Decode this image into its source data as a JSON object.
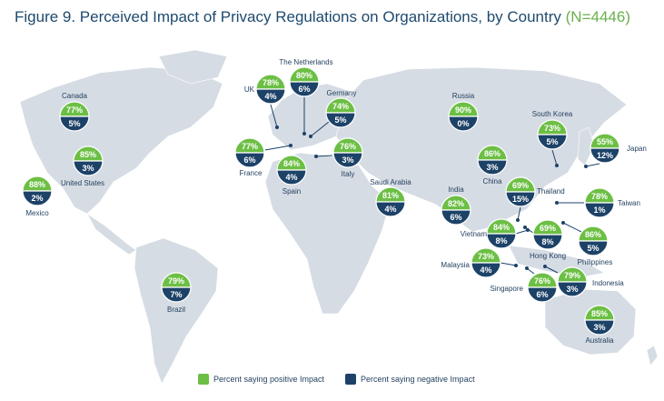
{
  "title": {
    "main": "Figure 9. Perceived Impact of Privacy Regulations on Organizations, by Country",
    "n": "(N=4446)"
  },
  "colors": {
    "positive": "#6cbf44",
    "negative": "#1d4268",
    "land": "#d6dce4",
    "text": "#1e4a6e"
  },
  "legend": {
    "positive": "Percent saying positive Impact",
    "negative": "Percent saying negative Impact"
  },
  "chart_data": {
    "type": "table",
    "series_names": [
      "Percent saying positive Impact",
      "Percent saying negative Impact"
    ],
    "countries": [
      {
        "name": "Canada",
        "positive": "77%",
        "negative": "5%"
      },
      {
        "name": "United States",
        "positive": "85%",
        "negative": "3%"
      },
      {
        "name": "Mexico",
        "positive": "88%",
        "negative": "2%"
      },
      {
        "name": "Brazil",
        "positive": "79%",
        "negative": "7%"
      },
      {
        "name": "UK",
        "positive": "78%",
        "negative": "4%"
      },
      {
        "name": "The Netherlands",
        "positive": "80%",
        "negative": "6%"
      },
      {
        "name": "Germany",
        "positive": "74%",
        "negative": "5%"
      },
      {
        "name": "France",
        "positive": "77%",
        "negative": "6%"
      },
      {
        "name": "Spain",
        "positive": "84%",
        "negative": "4%"
      },
      {
        "name": "Italy",
        "positive": "76%",
        "negative": "3%"
      },
      {
        "name": "Saudi Arabia",
        "positive": "81%",
        "negative": "4%"
      },
      {
        "name": "Russia",
        "positive": "90%",
        "negative": "0%"
      },
      {
        "name": "India",
        "positive": "82%",
        "negative": "6%"
      },
      {
        "name": "China",
        "positive": "86%",
        "negative": "3%"
      },
      {
        "name": "South Korea",
        "positive": "73%",
        "negative": "5%"
      },
      {
        "name": "Japan",
        "positive": "55%",
        "negative": "12%"
      },
      {
        "name": "Thailand",
        "positive": "69%",
        "negative": "15%"
      },
      {
        "name": "Taiwan",
        "positive": "78%",
        "negative": "1%"
      },
      {
        "name": "Vietnam",
        "positive": "84%",
        "negative": "8%"
      },
      {
        "name": "Hong Kong",
        "positive": "69%",
        "negative": "8%"
      },
      {
        "name": "Philippines",
        "positive": "86%",
        "negative": "5%"
      },
      {
        "name": "Malaysia",
        "positive": "73%",
        "negative": "4%"
      },
      {
        "name": "Singapore",
        "positive": "76%",
        "negative": "6%"
      },
      {
        "name": "Indonesia",
        "positive": "79%",
        "negative": "3%"
      },
      {
        "name": "Australia",
        "positive": "85%",
        "negative": "3%"
      }
    ]
  }
}
